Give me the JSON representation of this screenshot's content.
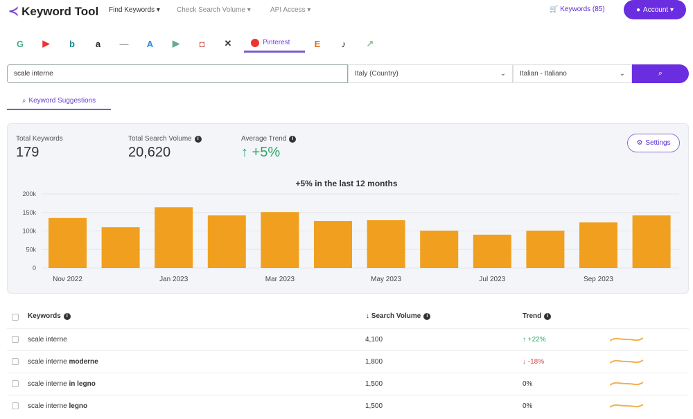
{
  "header": {
    "logo": "Keyword Tool",
    "nav": [
      "Find Keywords ▾",
      "Check Search Volume ▾",
      "API Access ▾"
    ],
    "cart": "Keywords (85)",
    "account": "Account ▾"
  },
  "sources": [
    {
      "icon": "google-icon",
      "glyph": "G",
      "color": "#4a8"
    },
    {
      "icon": "youtube-icon",
      "glyph": "▶",
      "color": "#e33"
    },
    {
      "icon": "bing-icon",
      "glyph": "b",
      "color": "#1a8a8a"
    },
    {
      "icon": "amazon-icon",
      "glyph": "a",
      "color": "#222"
    },
    {
      "icon": "ebay-icon",
      "glyph": "—",
      "color": "#aaa"
    },
    {
      "icon": "app-store-icon",
      "glyph": "A",
      "color": "#2a8ae0"
    },
    {
      "icon": "play-store-icon",
      "glyph": "▶",
      "color": "#6a8"
    },
    {
      "icon": "instagram-icon",
      "glyph": "◘",
      "color": "#d66"
    },
    {
      "icon": "x-icon",
      "glyph": "✕",
      "color": "#333"
    }
  ],
  "sources_after": [
    {
      "icon": "etsy-icon",
      "glyph": "E",
      "color": "#e86a1a"
    },
    {
      "icon": "tiktok-icon",
      "glyph": "♪",
      "color": "#222"
    },
    {
      "icon": "trends-icon",
      "glyph": "↗",
      "color": "#9b9"
    }
  ],
  "active_source": "Pinterest",
  "search": {
    "query": "scale interne",
    "country": "Italy (Country)",
    "language": "Italian - Italiano"
  },
  "tab": "Keyword Suggestions",
  "stats": {
    "total_keywords_label": "Total Keywords",
    "total_keywords": "179",
    "total_volume_label": "Total Search Volume",
    "total_volume": "20,620",
    "avg_trend_label": "Average Trend",
    "avg_trend": "↑ +5%",
    "settings": "Settings"
  },
  "chart_data": {
    "type": "bar",
    "title": "+5% in the last 12 months",
    "categories": [
      "Nov 2022",
      "Dec 2022",
      "Jan 2023",
      "Feb 2023",
      "Mar 2023",
      "Apr 2023",
      "May 2023",
      "Jun 2023",
      "Jul 2023",
      "Aug 2023",
      "Sep 2023",
      "Oct 2023"
    ],
    "values": [
      135000,
      110000,
      164000,
      142000,
      151000,
      127000,
      129000,
      101000,
      90000,
      101000,
      123000,
      142000
    ],
    "xticks": [
      "Nov 2022",
      "Jan 2023",
      "Mar 2023",
      "May 2023",
      "Jul 2023",
      "Sep 2023"
    ],
    "yticks": [
      "0",
      "50k",
      "100k",
      "150k",
      "200k"
    ],
    "ylim": [
      0,
      200000
    ],
    "color": "#f0a01e"
  },
  "table": {
    "headers": {
      "keywords": "Keywords",
      "volume": "↓ Search Volume",
      "trend": "Trend"
    },
    "rows": [
      {
        "kw": "scale interne",
        "bold": "",
        "vol": "4,100",
        "trend": "↑ +22%",
        "dir": "up"
      },
      {
        "kw": "scale interne ",
        "bold": "moderne",
        "vol": "1,800",
        "trend": "↓ -18%",
        "dir": "down"
      },
      {
        "kw": "scale interne ",
        "bold": "in legno",
        "vol": "1,500",
        "trend": "0%",
        "dir": "flat"
      },
      {
        "kw": "scale interne ",
        "bold": "legno",
        "vol": "1,500",
        "trend": "0%",
        "dir": "flat"
      }
    ]
  }
}
